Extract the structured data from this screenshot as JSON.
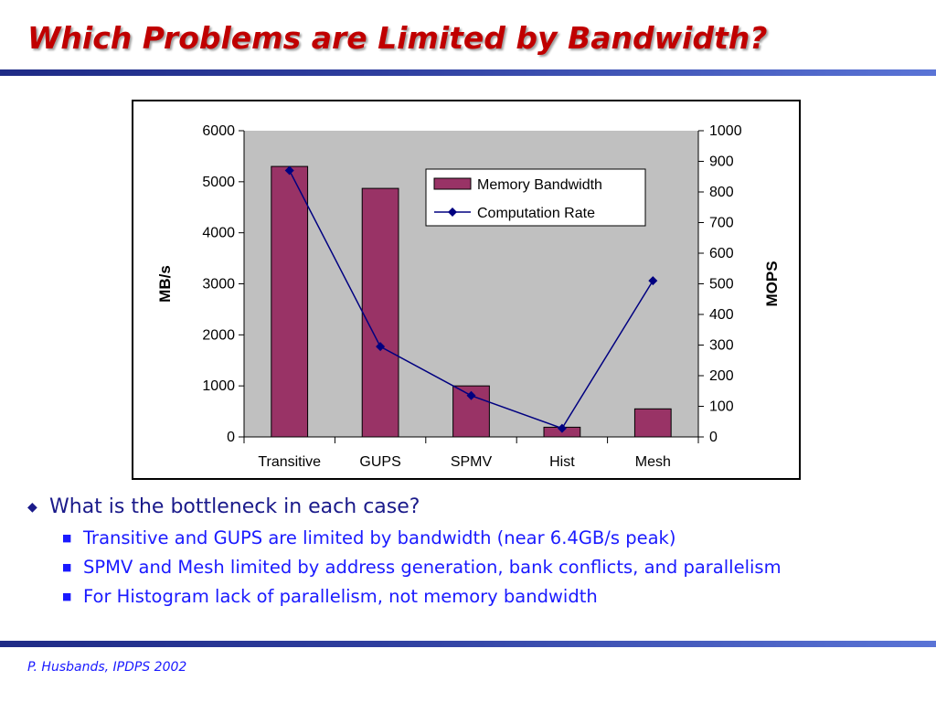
{
  "title": "Which Problems are Limited by Bandwidth?",
  "footer": "P. Husbands, IPDPS 2002",
  "bullets": {
    "main": "What is the bottleneck in each case?",
    "sub": [
      "Transitive and GUPS are limited by bandwidth (near 6.4GB/s peak)",
      "SPMV and Mesh limited by address generation, bank conflicts, and parallelism",
      "For Histogram lack of parallelism, not memory bandwidth"
    ]
  },
  "colors": {
    "title": "#c00000",
    "bar": "#993366",
    "line": "#000080",
    "plot_bg": "#c0c0c0",
    "bullet_main": "#1a1a8a",
    "bullet_sub": "#1a1aff"
  },
  "chart_data": {
    "type": "bar",
    "title": "",
    "categories": [
      "Transitive",
      "GUPS",
      "SPMV",
      "Hist",
      "Mesh"
    ],
    "series": [
      {
        "name": "Memory Bandwidth",
        "type": "bar",
        "axis": "left",
        "values": [
          5300,
          4870,
          1000,
          190,
          550
        ]
      },
      {
        "name": "Computation Rate",
        "type": "line",
        "axis": "right",
        "values": [
          870,
          295,
          135,
          28,
          510
        ]
      }
    ],
    "ylabel": "MB/s",
    "ylabel_right": "MOPS",
    "ylim": [
      0,
      6000
    ],
    "ylim_right": [
      0,
      1000
    ],
    "yticks": [
      "0",
      "1000",
      "2000",
      "3000",
      "4000",
      "5000",
      "6000"
    ],
    "yticks_right": [
      "0",
      "100",
      "200",
      "300",
      "400",
      "500",
      "600",
      "700",
      "800",
      "900",
      "1000"
    ],
    "legend_position": "top-right",
    "grid": false
  }
}
